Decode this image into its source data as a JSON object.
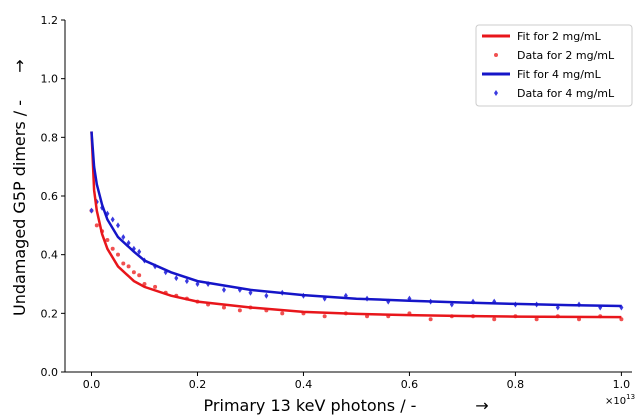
{
  "chart_data": {
    "type": "scatter",
    "title": "",
    "xlabel": "Primary 13 keV photons / -",
    "ylabel": "Undamaged G5P dimers / -",
    "xlim": [
      -0.05,
      1.02
    ],
    "ylim": [
      0.0,
      1.2
    ],
    "x_ticks": [
      "0.0",
      "0.2",
      "0.4",
      "0.6",
      "0.8",
      "1.0"
    ],
    "y_ticks": [
      "0.0",
      "0.2",
      "0.4",
      "0.6",
      "0.8",
      "1.0",
      "1.2"
    ],
    "x_multiplier": "×10",
    "x_multiplier_exp": "13",
    "x_arrow": "→",
    "y_arrow": "→",
    "legend_position": "top-right",
    "grid": false,
    "colors": {
      "fit_2": "#e8161b",
      "data_2": "#f05050",
      "fit_4": "#1515c8",
      "data_4": "#3a3ae0"
    },
    "series": [
      {
        "name": "Fit for 2 mg/mL",
        "kind": "line",
        "color": "#e8161b",
        "x": [
          0.0,
          0.005,
          0.01,
          0.02,
          0.03,
          0.05,
          0.08,
          0.1,
          0.15,
          0.2,
          0.3,
          0.4,
          0.5,
          0.6,
          0.7,
          0.8,
          0.9,
          1.0
        ],
        "y": [
          0.82,
          0.62,
          0.55,
          0.47,
          0.42,
          0.36,
          0.31,
          0.29,
          0.26,
          0.24,
          0.22,
          0.205,
          0.198,
          0.194,
          0.191,
          0.189,
          0.188,
          0.187
        ]
      },
      {
        "name": "Data for 2 mg/mL",
        "kind": "scatter",
        "color": "#f05050",
        "x": [
          0.0,
          0.01,
          0.02,
          0.03,
          0.04,
          0.05,
          0.06,
          0.07,
          0.08,
          0.09,
          0.1,
          0.12,
          0.14,
          0.16,
          0.18,
          0.2,
          0.22,
          0.25,
          0.28,
          0.3,
          0.33,
          0.36,
          0.4,
          0.44,
          0.48,
          0.52,
          0.56,
          0.6,
          0.64,
          0.68,
          0.72,
          0.76,
          0.8,
          0.84,
          0.88,
          0.92,
          0.96,
          1.0
        ],
        "y": [
          0.55,
          0.5,
          0.48,
          0.45,
          0.42,
          0.4,
          0.37,
          0.36,
          0.34,
          0.33,
          0.3,
          0.29,
          0.27,
          0.26,
          0.25,
          0.24,
          0.23,
          0.22,
          0.21,
          0.22,
          0.21,
          0.2,
          0.2,
          0.19,
          0.2,
          0.19,
          0.19,
          0.2,
          0.18,
          0.19,
          0.19,
          0.18,
          0.19,
          0.18,
          0.19,
          0.18,
          0.19,
          0.18
        ]
      },
      {
        "name": "Fit for 4 mg/mL",
        "kind": "line",
        "color": "#1515c8",
        "x": [
          0.0,
          0.005,
          0.01,
          0.02,
          0.03,
          0.05,
          0.08,
          0.1,
          0.15,
          0.2,
          0.3,
          0.4,
          0.5,
          0.6,
          0.7,
          0.8,
          0.9,
          1.0
        ],
        "y": [
          0.82,
          0.7,
          0.64,
          0.57,
          0.52,
          0.46,
          0.41,
          0.38,
          0.34,
          0.31,
          0.28,
          0.262,
          0.25,
          0.243,
          0.237,
          0.232,
          0.228,
          0.225
        ]
      },
      {
        "name": "Data for 4 mg/mL",
        "kind": "scatter",
        "color": "#3a3ae0",
        "x": [
          0.0,
          0.01,
          0.02,
          0.03,
          0.04,
          0.05,
          0.06,
          0.07,
          0.08,
          0.09,
          0.1,
          0.12,
          0.14,
          0.16,
          0.18,
          0.2,
          0.22,
          0.25,
          0.28,
          0.3,
          0.33,
          0.36,
          0.4,
          0.44,
          0.48,
          0.52,
          0.56,
          0.6,
          0.64,
          0.68,
          0.72,
          0.76,
          0.8,
          0.84,
          0.88,
          0.92,
          0.96,
          1.0
        ],
        "y": [
          0.55,
          0.58,
          0.56,
          0.54,
          0.52,
          0.5,
          0.46,
          0.44,
          0.42,
          0.41,
          0.38,
          0.36,
          0.34,
          0.32,
          0.31,
          0.3,
          0.3,
          0.28,
          0.28,
          0.27,
          0.26,
          0.27,
          0.26,
          0.25,
          0.26,
          0.25,
          0.24,
          0.25,
          0.24,
          0.23,
          0.24,
          0.24,
          0.23,
          0.23,
          0.22,
          0.23,
          0.22,
          0.22
        ]
      }
    ]
  }
}
